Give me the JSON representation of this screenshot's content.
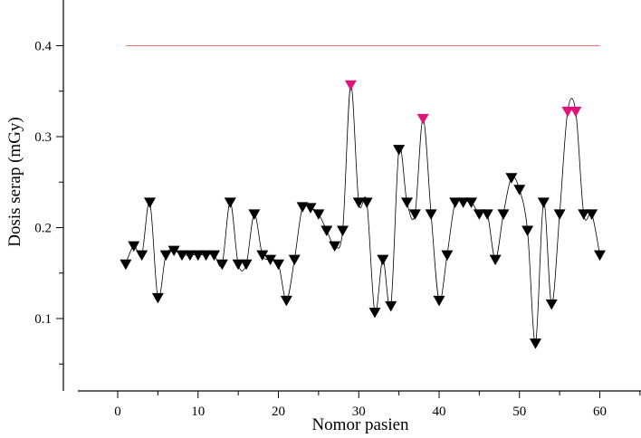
{
  "chart_data": {
    "type": "line",
    "title": "",
    "xlabel": "Nomor pasien",
    "ylabel": "Dosis serap (mGy)",
    "xlim": [
      -5,
      65
    ],
    "ylim": [
      0.01,
      0.445
    ],
    "xticks": [
      0,
      10,
      20,
      30,
      40,
      50,
      60
    ],
    "xtick_labels": [
      "0",
      "10",
      "20",
      "30",
      "40",
      "50",
      "60"
    ],
    "yticks": [
      0.1,
      0.2,
      0.3,
      0.4
    ],
    "ytick_labels": [
      "0.1",
      "0.2",
      "0.3",
      "0.4"
    ],
    "grid": false,
    "legend": "none",
    "series": [
      {
        "marker": "triangle-down",
        "line": "smooth",
        "x": [
          1,
          2,
          3,
          4,
          5,
          6,
          7,
          8,
          9,
          10,
          11,
          12,
          13,
          14,
          15,
          16,
          17,
          18,
          19,
          20,
          21,
          22,
          23,
          24,
          25,
          26,
          27,
          28,
          29,
          30,
          31,
          32,
          33,
          34,
          35,
          36,
          37,
          38,
          39,
          40,
          41,
          42,
          43,
          44,
          45,
          46,
          47,
          48,
          49,
          50,
          51,
          52,
          53,
          54,
          55,
          56,
          57,
          58,
          59,
          60
        ],
        "y": [
          0.16,
          0.18,
          0.17,
          0.228,
          0.123,
          0.17,
          0.175,
          0.17,
          0.17,
          0.17,
          0.17,
          0.17,
          0.16,
          0.228,
          0.16,
          0.16,
          0.215,
          0.17,
          0.165,
          0.16,
          0.12,
          0.165,
          0.223,
          0.222,
          0.215,
          0.197,
          0.18,
          0.197,
          0.357,
          0.228,
          0.228,
          0.107,
          0.165,
          0.114,
          0.286,
          0.228,
          0.215,
          0.32,
          0.215,
          0.12,
          0.17,
          0.228,
          0.228,
          0.228,
          0.215,
          0.215,
          0.165,
          0.215,
          0.255,
          0.242,
          0.197,
          0.073,
          0.228,
          0.116,
          0.215,
          0.328,
          0.328,
          0.215,
          0.215,
          0.17
        ],
        "highlight_x": [
          29,
          38,
          56,
          57
        ]
      },
      {
        "line": "straight",
        "x": [
          1,
          60
        ],
        "y": [
          0.4,
          0.4
        ]
      }
    ],
    "colors": {
      "markers": "#000000",
      "highlight": "#e0137c",
      "reference_line": "#e07a73",
      "data_line": "#000000"
    }
  }
}
